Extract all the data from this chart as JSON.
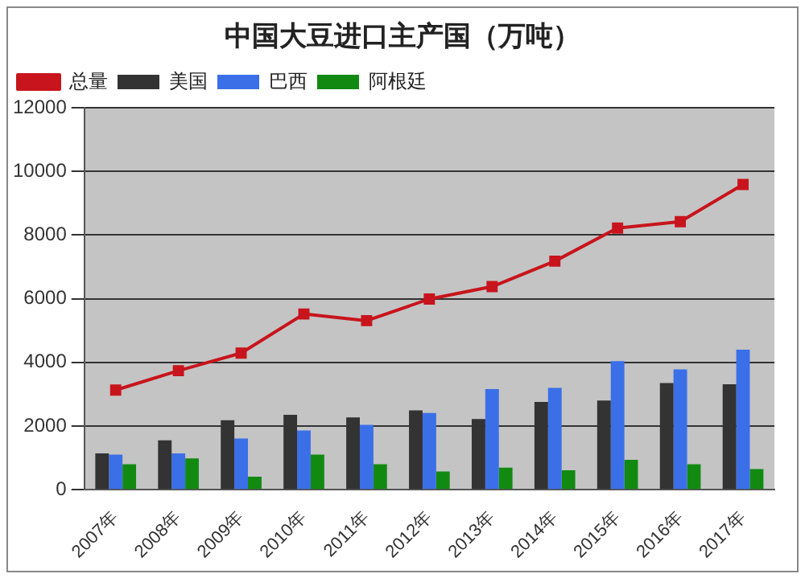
{
  "chart_data": {
    "type": "bar",
    "title": "中国大豆进口主产国（万吨）",
    "categories": [
      "2007年",
      "2008年",
      "2009年",
      "2010年",
      "2011年",
      "2012年",
      "2013年",
      "2014年",
      "2015年",
      "2016年",
      "2017年"
    ],
    "series": [
      {
        "name": "美国",
        "color": "#333333",
        "values": [
          1140,
          1550,
          2180,
          2350,
          2270,
          2490,
          2220,
          2760,
          2800,
          3350,
          3310
        ]
      },
      {
        "name": "巴西",
        "color": "#3b6fe8",
        "values": [
          1100,
          1140,
          1610,
          1860,
          2040,
          2410,
          3160,
          3200,
          4040,
          3780,
          4400
        ]
      },
      {
        "name": "阿根廷",
        "color": "#128a12",
        "values": [
          800,
          980,
          410,
          1100,
          800,
          570,
          690,
          610,
          940,
          800,
          650
        ]
      },
      {
        "name": "总量",
        "type": "line",
        "color": "#c8141c",
        "marker": "square",
        "values": [
          3130,
          3740,
          4290,
          5520,
          5310,
          5990,
          6380,
          7180,
          8220,
          8420,
          9590
        ]
      }
    ],
    "ylim": [
      0,
      12000
    ],
    "yticks": [
      0,
      2000,
      4000,
      6000,
      8000,
      10000,
      12000
    ],
    "grid": "y",
    "legend": "top left"
  }
}
